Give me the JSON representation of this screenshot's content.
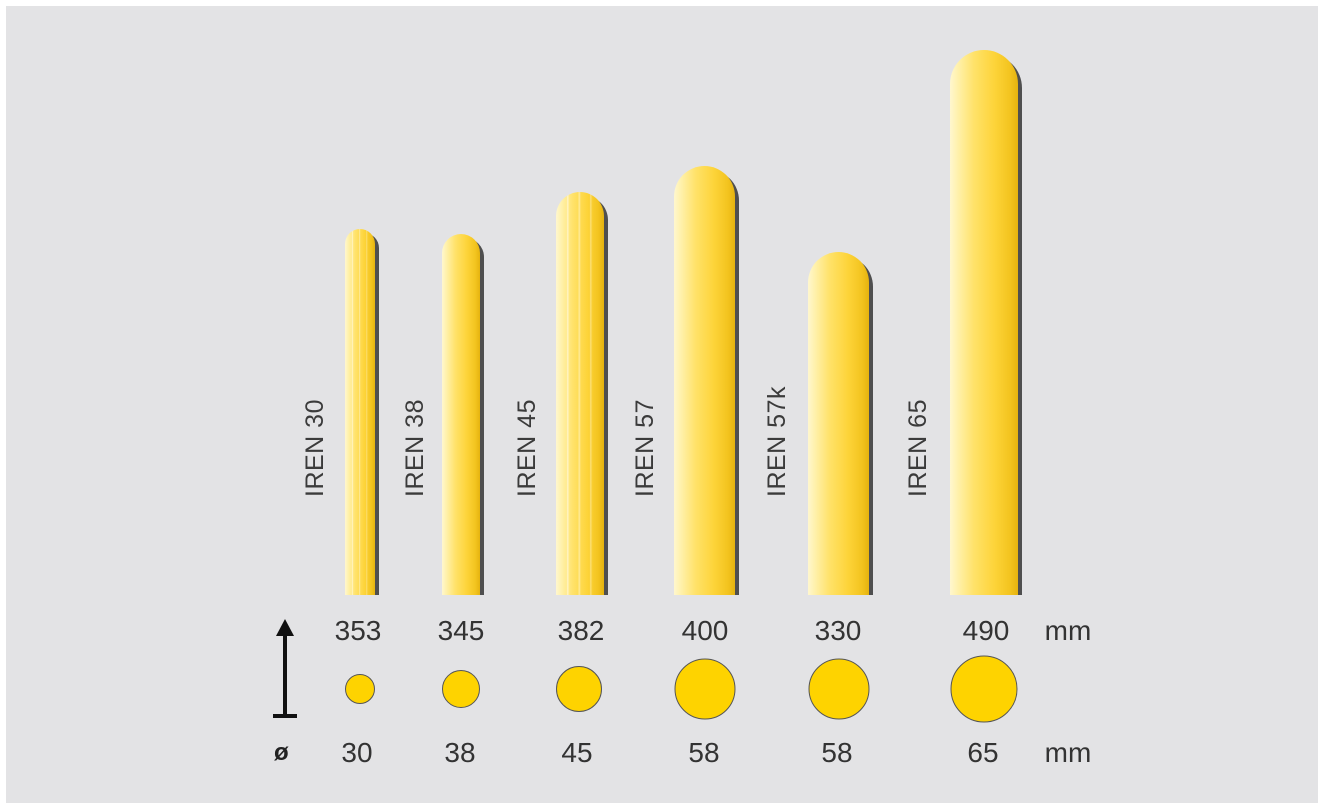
{
  "products": [
    {
      "name": "IREN 30",
      "height": "353",
      "diameter": "30",
      "color": "#fed300"
    },
    {
      "name": "IREN 38",
      "height": "345",
      "diameter": "38",
      "color": "#fed300"
    },
    {
      "name": "IREN 45",
      "height": "382",
      "diameter": "45",
      "color": "#fed300"
    },
    {
      "name": "IREN 57",
      "height": "400",
      "diameter": "58",
      "color": "#fed300"
    },
    {
      "name": "IREN 57k",
      "height": "330",
      "diameter": "58",
      "color": "#fed300"
    },
    {
      "name": "IREN 65",
      "height": "490",
      "diameter": "65",
      "color": "#fed300"
    }
  ],
  "height_row": {
    "unit": "mm"
  },
  "diameter_row": {
    "symbol": "ø",
    "unit": "mm"
  },
  "icons": {
    "height_arrow": "up-arrow-icon"
  }
}
